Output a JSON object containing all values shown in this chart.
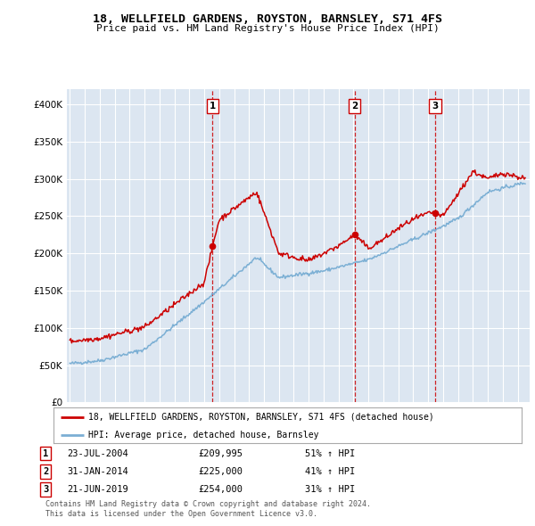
{
  "title": "18, WELLFIELD GARDENS, ROYSTON, BARNSLEY, S71 4FS",
  "subtitle": "Price paid vs. HM Land Registry's House Price Index (HPI)",
  "legend_label_red": "18, WELLFIELD GARDENS, ROYSTON, BARNSLEY, S71 4FS (detached house)",
  "legend_label_blue": "HPI: Average price, detached house, Barnsley",
  "footer1": "Contains HM Land Registry data © Crown copyright and database right 2024.",
  "footer2": "This data is licensed under the Open Government Licence v3.0.",
  "transactions": [
    {
      "num": "1",
      "date": "23-JUL-2004",
      "price": "£209,995",
      "hpi": "51% ↑ HPI",
      "year": 2004.56
    },
    {
      "num": "2",
      "date": "31-JAN-2014",
      "price": "£225,000",
      "hpi": "41% ↑ HPI",
      "year": 2014.08
    },
    {
      "num": "3",
      "date": "21-JUN-2019",
      "price": "£254,000",
      "hpi": "31% ↑ HPI",
      "year": 2019.47
    }
  ],
  "transaction_prices": [
    209995,
    225000,
    254000
  ],
  "ylim": [
    0,
    420000
  ],
  "xlim_start": 1994.8,
  "xlim_end": 2025.8,
  "red_color": "#cc0000",
  "blue_color": "#7bafd4",
  "dashed_color": "#cc0000",
  "plot_bg": "#dce6f1",
  "grid_color": "#ffffff",
  "title_fontsize": 9.5,
  "subtitle_fontsize": 8.0
}
